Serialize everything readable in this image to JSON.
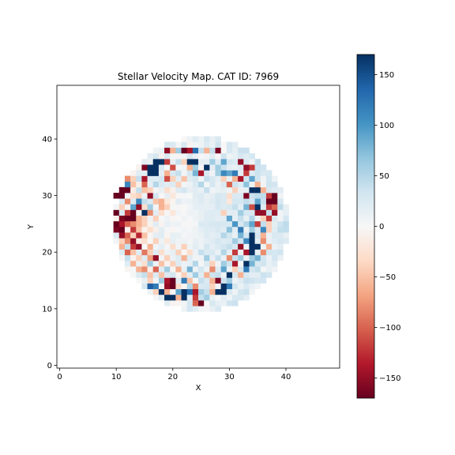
{
  "chart_data": {
    "type": "heatmap",
    "title": "Stellar Velocity Map. CAT ID: 7969",
    "xlabel": "X",
    "ylabel": "Y",
    "xlim": [
      0,
      50
    ],
    "ylim": [
      0,
      50
    ],
    "x_ticks": [
      0,
      10,
      20,
      30,
      40
    ],
    "y_ticks": [
      0,
      10,
      20,
      30,
      40
    ],
    "colormap": "RdBu",
    "vmin": -170,
    "vmax": 170,
    "colorbar_ticks": [
      150,
      100,
      50,
      0,
      -50,
      -100,
      -150
    ],
    "grid": false,
    "grid_size": [
      50,
      50
    ],
    "disk_center": [
      25,
      25
    ],
    "disk_radius": 15.5,
    "cells": [
      [
        19,
        38,
        -150
      ],
      [
        20,
        38,
        -60
      ],
      [
        21,
        38,
        60
      ],
      [
        22,
        38,
        -170
      ],
      [
        23,
        38,
        -140
      ],
      [
        24,
        38,
        130
      ],
      [
        25,
        38,
        40
      ],
      [
        26,
        38,
        -60
      ],
      [
        27,
        38,
        40
      ],
      [
        28,
        38,
        -160
      ],
      [
        17,
        36,
        170
      ],
      [
        18,
        36,
        170
      ],
      [
        19,
        36,
        -120
      ],
      [
        21,
        36,
        40
      ],
      [
        22,
        36,
        -40
      ],
      [
        23,
        36,
        170
      ],
      [
        24,
        36,
        170
      ],
      [
        27,
        36,
        60
      ],
      [
        29,
        36,
        90
      ],
      [
        32,
        36,
        -150
      ],
      [
        15,
        35,
        -160
      ],
      [
        16,
        35,
        170
      ],
      [
        17,
        35,
        170
      ],
      [
        20,
        35,
        -110
      ],
      [
        23,
        35,
        -60
      ],
      [
        24,
        35,
        60
      ],
      [
        26,
        35,
        170
      ],
      [
        28,
        35,
        60
      ],
      [
        33,
        35,
        -150
      ],
      [
        34,
        35,
        -120
      ],
      [
        14,
        34,
        20
      ],
      [
        16,
        34,
        170
      ],
      [
        17,
        34,
        170
      ],
      [
        19,
        34,
        -60
      ],
      [
        21,
        34,
        40
      ],
      [
        24,
        34,
        80
      ],
      [
        25,
        34,
        -140
      ],
      [
        28,
        34,
        60
      ],
      [
        29,
        34,
        110
      ],
      [
        30,
        34,
        90
      ],
      [
        31,
        34,
        120
      ],
      [
        33,
        34,
        -120
      ],
      [
        12,
        33,
        -80
      ],
      [
        13,
        33,
        -40
      ],
      [
        14,
        33,
        40
      ],
      [
        15,
        33,
        -140
      ],
      [
        18,
        33,
        30
      ],
      [
        19,
        33,
        -110
      ],
      [
        20,
        33,
        -40
      ],
      [
        22,
        33,
        -50
      ],
      [
        24,
        33,
        30
      ],
      [
        26,
        33,
        40
      ],
      [
        29,
        33,
        -40
      ],
      [
        31,
        33,
        -60
      ],
      [
        32,
        33,
        -140
      ],
      [
        34,
        33,
        90
      ],
      [
        12,
        32,
        110
      ],
      [
        13,
        32,
        -50
      ],
      [
        15,
        32,
        -100
      ],
      [
        17,
        32,
        50
      ],
      [
        19,
        32,
        20
      ],
      [
        21,
        32,
        -40
      ],
      [
        25,
        32,
        50
      ],
      [
        27,
        32,
        30
      ],
      [
        30,
        32,
        -100
      ],
      [
        33,
        32,
        70
      ],
      [
        35,
        32,
        -60
      ],
      [
        11,
        31,
        -170
      ],
      [
        12,
        31,
        -170
      ],
      [
        14,
        31,
        40
      ],
      [
        15,
        31,
        -50
      ],
      [
        16,
        31,
        -40
      ],
      [
        19,
        31,
        -30
      ],
      [
        22,
        31,
        30
      ],
      [
        26,
        31,
        40
      ],
      [
        31,
        31,
        -40
      ],
      [
        34,
        31,
        170
      ],
      [
        35,
        31,
        170
      ],
      [
        36,
        31,
        -60
      ],
      [
        10,
        30,
        -170
      ],
      [
        11,
        30,
        -170
      ],
      [
        13,
        30,
        -30
      ],
      [
        14,
        30,
        -40
      ],
      [
        16,
        30,
        -150
      ],
      [
        17,
        30,
        30
      ],
      [
        20,
        30,
        -20
      ],
      [
        24,
        30,
        20
      ],
      [
        28,
        30,
        30
      ],
      [
        30,
        30,
        -30
      ],
      [
        33,
        30,
        -160
      ],
      [
        37,
        30,
        -120
      ],
      [
        38,
        30,
        -170
      ],
      [
        12,
        29,
        -80
      ],
      [
        14,
        29,
        110
      ],
      [
        15,
        29,
        40
      ],
      [
        17,
        29,
        -50
      ],
      [
        18,
        29,
        -60
      ],
      [
        19,
        29,
        -20
      ],
      [
        21,
        29,
        20
      ],
      [
        30,
        29,
        -20
      ],
      [
        32,
        29,
        30
      ],
      [
        35,
        29,
        90
      ],
      [
        37,
        29,
        -170
      ],
      [
        38,
        29,
        -170
      ],
      [
        11,
        28,
        -40
      ],
      [
        13,
        28,
        90
      ],
      [
        14,
        28,
        -150
      ],
      [
        15,
        28,
        -30
      ],
      [
        16,
        28,
        60
      ],
      [
        18,
        28,
        -60
      ],
      [
        19,
        28,
        -40
      ],
      [
        31,
        28,
        40
      ],
      [
        33,
        28,
        80
      ],
      [
        34,
        28,
        -110
      ],
      [
        35,
        28,
        170
      ],
      [
        37,
        28,
        -120
      ],
      [
        38,
        28,
        -100
      ],
      [
        10,
        27,
        -170
      ],
      [
        12,
        27,
        -120
      ],
      [
        13,
        27,
        -170
      ],
      [
        15,
        27,
        170
      ],
      [
        16,
        27,
        -80
      ],
      [
        18,
        27,
        -30
      ],
      [
        20,
        27,
        -20
      ],
      [
        29,
        27,
        -40
      ],
      [
        32,
        27,
        60
      ],
      [
        33,
        27,
        30
      ],
      [
        35,
        27,
        -150
      ],
      [
        36,
        27,
        -150
      ],
      [
        38,
        27,
        -150
      ],
      [
        11,
        26,
        -160
      ],
      [
        12,
        26,
        -170
      ],
      [
        13,
        26,
        -170
      ],
      [
        14,
        26,
        -60
      ],
      [
        15,
        26,
        -40
      ],
      [
        17,
        26,
        -40
      ],
      [
        30,
        26,
        90
      ],
      [
        32,
        26,
        40
      ],
      [
        34,
        26,
        50
      ],
      [
        36,
        26,
        -40
      ],
      [
        37,
        26,
        -120
      ],
      [
        10,
        25,
        -170
      ],
      [
        11,
        25,
        -140
      ],
      [
        12,
        25,
        -100
      ],
      [
        13,
        25,
        -80
      ],
      [
        14,
        25,
        -60
      ],
      [
        15,
        25,
        -40
      ],
      [
        17,
        25,
        20
      ],
      [
        31,
        25,
        100
      ],
      [
        33,
        25,
        50
      ],
      [
        34,
        25,
        90
      ],
      [
        35,
        25,
        -120
      ],
      [
        37,
        25,
        -40
      ],
      [
        10,
        24,
        -160
      ],
      [
        11,
        24,
        -170
      ],
      [
        13,
        24,
        -120
      ],
      [
        14,
        24,
        -50
      ],
      [
        16,
        24,
        -30
      ],
      [
        30,
        24,
        70
      ],
      [
        32,
        24,
        120
      ],
      [
        34,
        24,
        60
      ],
      [
        36,
        24,
        110
      ],
      [
        37,
        24,
        -40
      ],
      [
        11,
        23,
        -150
      ],
      [
        12,
        23,
        -100
      ],
      [
        13,
        23,
        -40
      ],
      [
        14,
        23,
        -130
      ],
      [
        15,
        23,
        -50
      ],
      [
        18,
        23,
        20
      ],
      [
        29,
        23,
        50
      ],
      [
        32,
        23,
        80
      ],
      [
        34,
        23,
        170
      ],
      [
        35,
        23,
        30
      ],
      [
        36,
        23,
        -60
      ],
      [
        11,
        22,
        -40
      ],
      [
        12,
        22,
        -80
      ],
      [
        13,
        22,
        -150
      ],
      [
        15,
        22,
        -30
      ],
      [
        17,
        22,
        -40
      ],
      [
        19,
        22,
        -20
      ],
      [
        28,
        22,
        30
      ],
      [
        31,
        22,
        60
      ],
      [
        33,
        22,
        110
      ],
      [
        34,
        22,
        170
      ],
      [
        36,
        22,
        -80
      ],
      [
        11,
        21,
        -60
      ],
      [
        12,
        21,
        40
      ],
      [
        13,
        21,
        -120
      ],
      [
        14,
        21,
        -150
      ],
      [
        16,
        21,
        -60
      ],
      [
        20,
        21,
        -30
      ],
      [
        22,
        21,
        -40
      ],
      [
        26,
        21,
        30
      ],
      [
        30,
        21,
        40
      ],
      [
        32,
        21,
        -150
      ],
      [
        34,
        21,
        170
      ],
      [
        35,
        21,
        170
      ],
      [
        37,
        21,
        -60
      ],
      [
        12,
        20,
        -100
      ],
      [
        13,
        20,
        -50
      ],
      [
        15,
        20,
        -90
      ],
      [
        16,
        20,
        -40
      ],
      [
        18,
        20,
        -30
      ],
      [
        21,
        20,
        -40
      ],
      [
        23,
        20,
        -30
      ],
      [
        25,
        20,
        40
      ],
      [
        29,
        20,
        50
      ],
      [
        31,
        20,
        -120
      ],
      [
        33,
        20,
        -140
      ],
      [
        34,
        20,
        170
      ],
      [
        36,
        20,
        -80
      ],
      [
        12,
        19,
        40
      ],
      [
        14,
        19,
        -40
      ],
      [
        16,
        19,
        -70
      ],
      [
        17,
        19,
        -150
      ],
      [
        19,
        19,
        -40
      ],
      [
        22,
        19,
        -60
      ],
      [
        26,
        19,
        60
      ],
      [
        28,
        19,
        40
      ],
      [
        30,
        19,
        -80
      ],
      [
        32,
        19,
        60
      ],
      [
        34,
        19,
        60
      ],
      [
        35,
        19,
        80
      ],
      [
        13,
        18,
        -60
      ],
      [
        15,
        18,
        -30
      ],
      [
        16,
        18,
        60
      ],
      [
        18,
        18,
        -50
      ],
      [
        20,
        18,
        -40
      ],
      [
        24,
        18,
        50
      ],
      [
        27,
        18,
        -40
      ],
      [
        29,
        18,
        60
      ],
      [
        31,
        18,
        -140
      ],
      [
        33,
        18,
        170
      ],
      [
        34,
        18,
        80
      ],
      [
        14,
        17,
        -60
      ],
      [
        15,
        17,
        -80
      ],
      [
        17,
        17,
        -100
      ],
      [
        19,
        17,
        60
      ],
      [
        21,
        17,
        -60
      ],
      [
        23,
        17,
        80
      ],
      [
        25,
        17,
        30
      ],
      [
        27,
        17,
        -80
      ],
      [
        29,
        17,
        90
      ],
      [
        31,
        17,
        -40
      ],
      [
        33,
        17,
        120
      ],
      [
        15,
        16,
        40
      ],
      [
        16,
        16,
        -50
      ],
      [
        18,
        16,
        -50
      ],
      [
        20,
        16,
        30
      ],
      [
        22,
        16,
        -40
      ],
      [
        24,
        16,
        60
      ],
      [
        26,
        16,
        -60
      ],
      [
        28,
        16,
        40
      ],
      [
        30,
        16,
        170
      ],
      [
        32,
        16,
        -60
      ],
      [
        16,
        15,
        -40
      ],
      [
        18,
        15,
        60
      ],
      [
        19,
        15,
        -140
      ],
      [
        20,
        15,
        -170
      ],
      [
        22,
        15,
        120
      ],
      [
        23,
        15,
        -50
      ],
      [
        25,
        15,
        40
      ],
      [
        27,
        15,
        -60
      ],
      [
        28,
        15,
        -160
      ],
      [
        30,
        15,
        60
      ],
      [
        15,
        14,
        30
      ],
      [
        16,
        14,
        140
      ],
      [
        17,
        14,
        120
      ],
      [
        19,
        14,
        -150
      ],
      [
        20,
        14,
        -170
      ],
      [
        21,
        14,
        -30
      ],
      [
        23,
        14,
        50
      ],
      [
        24,
        14,
        -80
      ],
      [
        26,
        14,
        30
      ],
      [
        27,
        14,
        -40
      ],
      [
        29,
        14,
        170
      ],
      [
        30,
        14,
        120
      ],
      [
        17,
        13,
        -40
      ],
      [
        18,
        13,
        170
      ],
      [
        19,
        13,
        -60
      ],
      [
        21,
        13,
        90
      ],
      [
        22,
        13,
        170
      ],
      [
        23,
        13,
        130
      ],
      [
        24,
        13,
        -140
      ],
      [
        25,
        13,
        60
      ],
      [
        26,
        13,
        40
      ],
      [
        27,
        13,
        -60
      ],
      [
        28,
        13,
        170
      ],
      [
        29,
        13,
        170
      ],
      [
        19,
        12,
        170
      ],
      [
        20,
        12,
        170
      ],
      [
        21,
        12,
        -60
      ],
      [
        22,
        12,
        170
      ],
      [
        24,
        12,
        -120
      ],
      [
        25,
        12,
        40
      ],
      [
        26,
        12,
        60
      ],
      [
        24,
        11,
        -100
      ],
      [
        25,
        11,
        -170
      ]
    ]
  }
}
